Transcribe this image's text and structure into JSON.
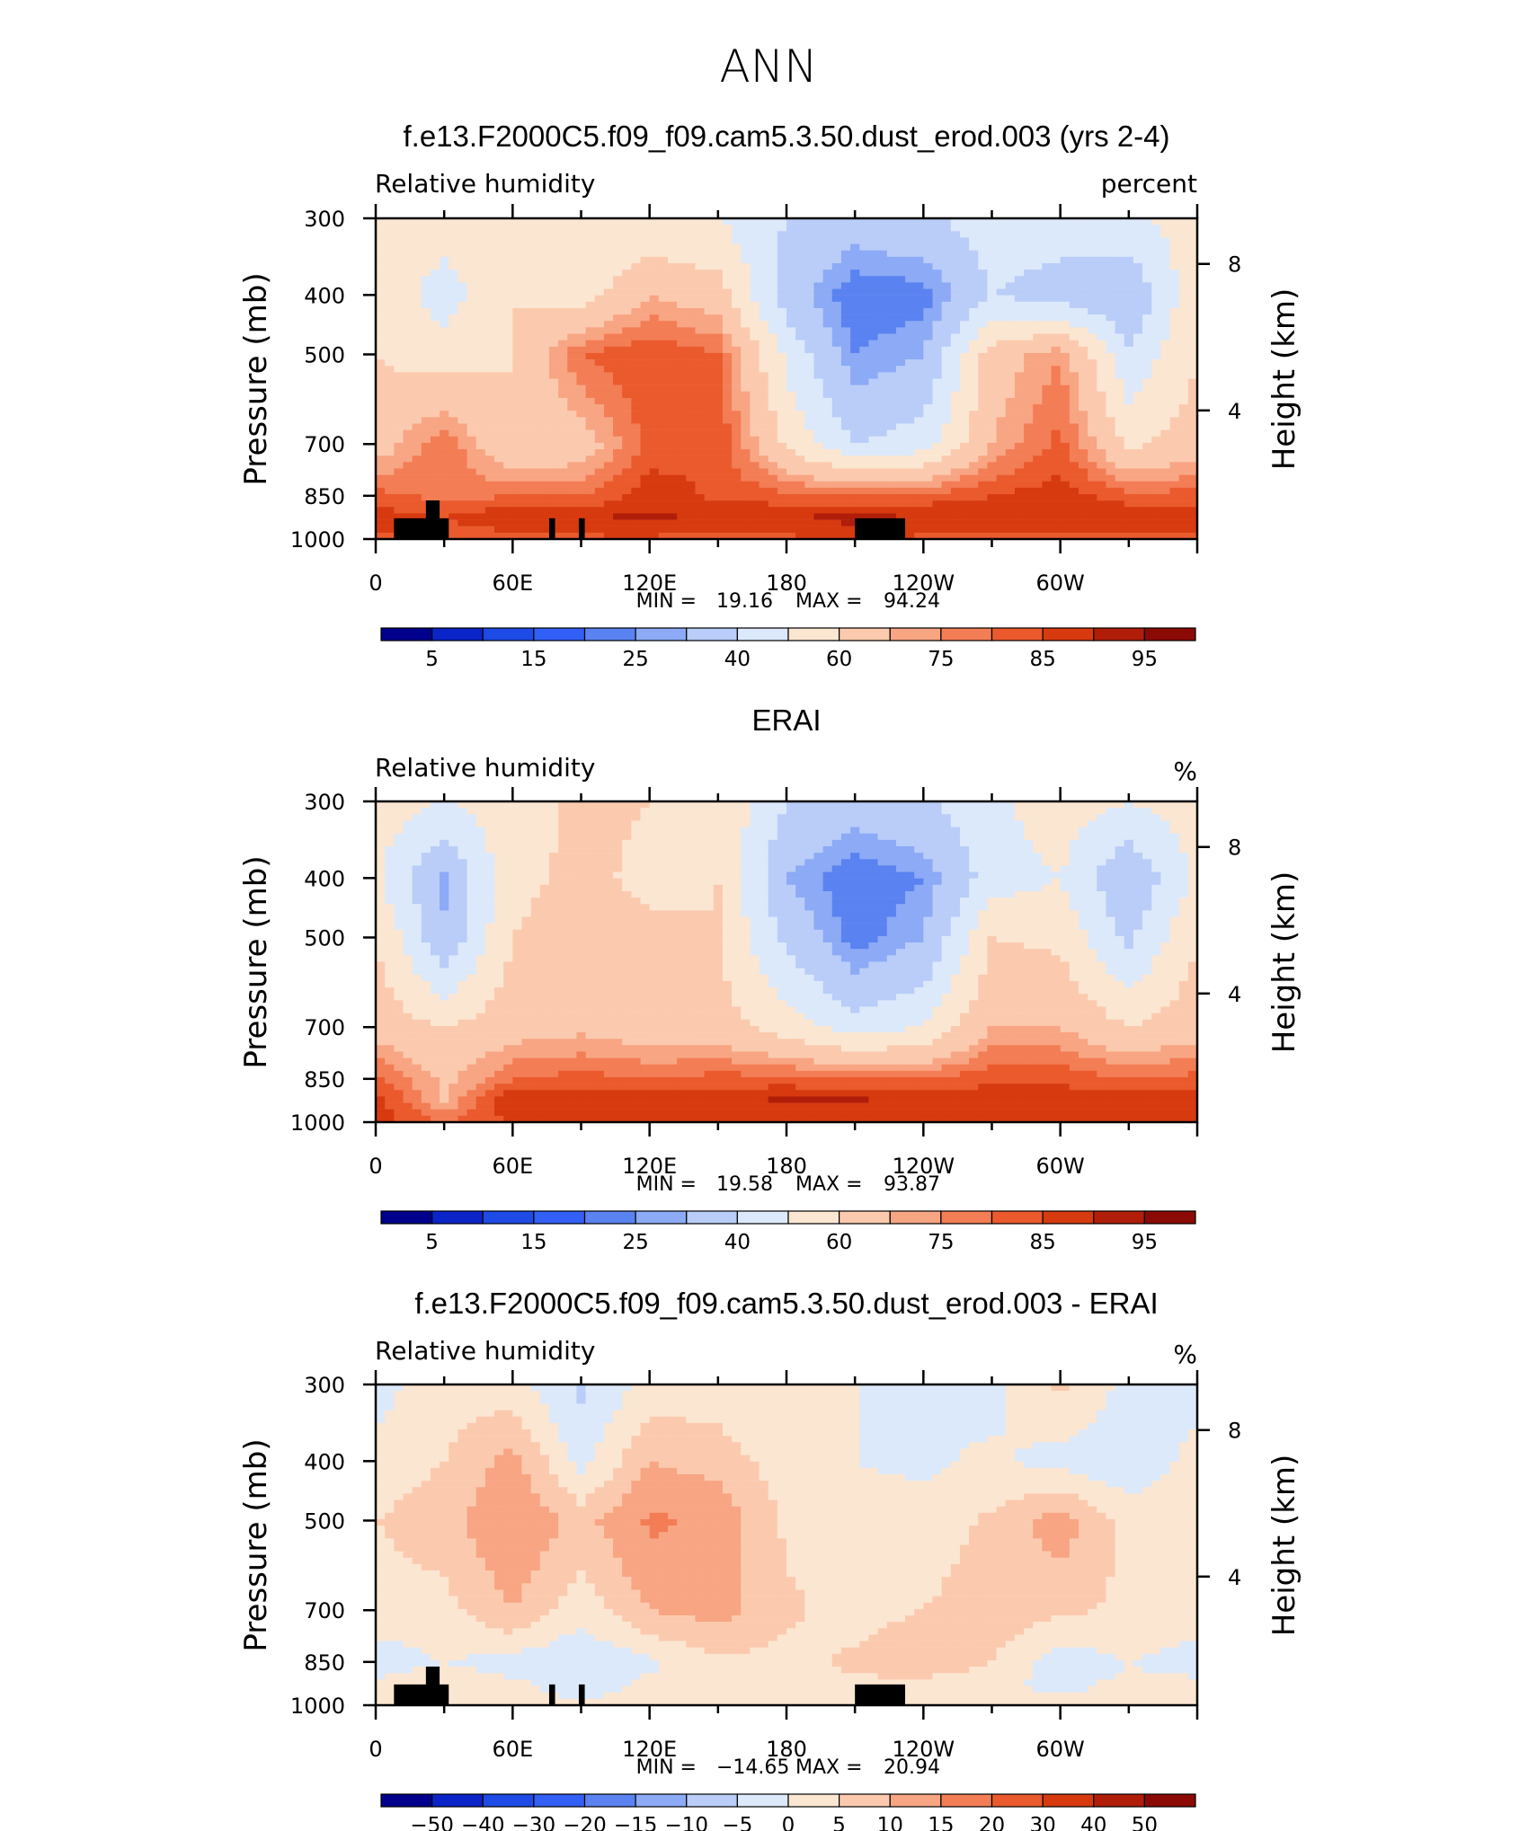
{
  "suptitle": "ANN",
  "x_ticks": [
    "0",
    "60E",
    "120E",
    "180",
    "120W",
    "60W"
  ],
  "y_ticks": [
    "300",
    "400",
    "500",
    "700",
    "850",
    "1000"
  ],
  "y_right_ticks": [
    "8",
    "4"
  ],
  "ylabel_left": "Pressure (mb)",
  "ylabel_right": "Height (km)",
  "min_label": "MIN =",
  "max_label": "MAX =",
  "panels": [
    {
      "title": "f.e13.F2000C5.f09_f09.cam5.3.50.dust_erod.003 (yrs 2-4)",
      "left_label": "Relative humidity",
      "right_label": "percent",
      "min": "19.16",
      "max": "94.24",
      "colorbar_labels": [
        "5",
        "15",
        "25",
        "40",
        "60",
        "75",
        "85",
        "95"
      ]
    },
    {
      "title": "ERAI",
      "left_label": "Relative humidity",
      "right_label": "%",
      "min": "19.58",
      "max": "93.87",
      "colorbar_labels": [
        "5",
        "15",
        "25",
        "40",
        "60",
        "75",
        "85",
        "95"
      ]
    },
    {
      "title": "f.e13.F2000C5.f09_f09.cam5.3.50.dust_erod.003 - ERAI",
      "left_label": "Relative humidity",
      "right_label": "%",
      "min": "−14.65",
      "max": "20.94",
      "colorbar_labels": [
        "−50",
        "−40",
        "−30",
        "−20",
        "−15",
        "−10",
        "−5",
        "0",
        "5",
        "10",
        "15",
        "20",
        "30",
        "40",
        "50"
      ]
    }
  ],
  "palette": [
    "#00008c",
    "#0a24c8",
    "#1e4be6",
    "#325ff5",
    "#5a82f0",
    "#8caaf5",
    "#b9cdf8",
    "#dce9fa",
    "#fbe6d2",
    "#fbcaae",
    "#f8a583",
    "#f37d55",
    "#ea5a2d",
    "#d73a0f",
    "#b01e0a",
    "#8c0a05"
  ],
  "chart_data": [
    {
      "type": "heatmap",
      "title": "f.e13.F2000C5.f09_f09.cam5.3.50.dust_erod.003 (yrs 2-4)",
      "subtitle": "Relative humidity",
      "units": "percent",
      "xlabel": "",
      "ylabel": "Pressure (mb)",
      "xlim": [
        0,
        360
      ],
      "ylim": [
        1000,
        300
      ],
      "y_scale": "log",
      "levels": [
        5,
        10,
        15,
        20,
        25,
        30,
        40,
        50,
        60,
        70,
        75,
        80,
        85,
        90,
        95
      ],
      "min": 19.16,
      "max": 94.24,
      "longitude": [
        0,
        30,
        60,
        90,
        120,
        150,
        180,
        210,
        240,
        270,
        300,
        330,
        360
      ],
      "pressure": [
        300,
        400,
        500,
        700,
        850,
        925,
        1000
      ],
      "values": [
        [
          55,
          55,
          55,
          50,
          52,
          50,
          40,
          35,
          38,
          45,
          45,
          48,
          55
        ],
        [
          58,
          45,
          60,
          55,
          70,
          65,
          35,
          20,
          22,
          40,
          35,
          30,
          58
        ],
        [
          60,
          55,
          60,
          80,
          85,
          80,
          48,
          25,
          30,
          65,
          75,
          42,
          60
        ],
        [
          65,
          80,
          60,
          65,
          82,
          85,
          58,
          40,
          45,
          70,
          82,
          58,
          65
        ],
        [
          82,
          78,
          80,
          80,
          88,
          84,
          82,
          80,
          82,
          85,
          88,
          82,
          82
        ],
        [
          88,
          85,
          90,
          90,
          91,
          89,
          90,
          92,
          90,
          88,
          86,
          90,
          88
        ],
        [
          84,
          82,
          82,
          84,
          84,
          83,
          84,
          84,
          84,
          84,
          84,
          84,
          84
        ]
      ]
    },
    {
      "type": "heatmap",
      "title": "ERAI",
      "subtitle": "Relative humidity",
      "units": "%",
      "xlabel": "",
      "ylabel": "Pressure (mb)",
      "xlim": [
        0,
        360
      ],
      "ylim": [
        1000,
        300
      ],
      "y_scale": "log",
      "levels": [
        5,
        10,
        15,
        20,
        25,
        30,
        40,
        50,
        60,
        70,
        75,
        80,
        85,
        90,
        95
      ],
      "min": 19.58,
      "max": 93.87,
      "longitude": [
        0,
        30,
        60,
        90,
        120,
        150,
        180,
        210,
        240,
        270,
        300,
        330,
        360
      ],
      "pressure": [
        300,
        400,
        500,
        700,
        850,
        925,
        1000
      ],
      "values": [
        [
          55,
          50,
          55,
          62,
          60,
          58,
          40,
          35,
          38,
          48,
          55,
          50,
          55
        ],
        [
          52,
          28,
          58,
          62,
          58,
          60,
          30,
          20,
          25,
          45,
          50,
          30,
          52
        ],
        [
          60,
          32,
          60,
          64,
          62,
          60,
          38,
          22,
          30,
          60,
          58,
          38,
          60
        ],
        [
          66,
          60,
          66,
          68,
          65,
          65,
          55,
          45,
          50,
          70,
          70,
          60,
          66
        ],
        [
          82,
          68,
          80,
          82,
          80,
          82,
          82,
          80,
          80,
          84,
          84,
          80,
          82
        ],
        [
          88,
          70,
          90,
          90,
          89,
          90,
          91,
          91,
          90,
          88,
          88,
          88,
          88
        ],
        [
          88,
          80,
          86,
          86,
          86,
          86,
          86,
          86,
          86,
          86,
          86,
          86,
          88
        ]
      ]
    },
    {
      "type": "heatmap",
      "title": "f.e13.F2000C5.f09_f09.cam5.3.50.dust_erod.003 - ERAI",
      "subtitle": "Relative humidity",
      "units": "%",
      "xlabel": "",
      "ylabel": "Pressure (mb)",
      "xlim": [
        0,
        360
      ],
      "ylim": [
        1000,
        300
      ],
      "y_scale": "log",
      "levels": [
        -50,
        -40,
        -30,
        -20,
        -15,
        -10,
        -5,
        0,
        5,
        10,
        15,
        20,
        30,
        40,
        50
      ],
      "min": -14.65,
      "max": 20.94,
      "longitude": [
        0,
        30,
        60,
        90,
        120,
        150,
        180,
        210,
        240,
        270,
        300,
        330,
        360
      ],
      "pressure": [
        300,
        400,
        500,
        700,
        850,
        925,
        1000
      ],
      "values": [
        [
          -2,
          3,
          2,
          -6,
          2,
          2,
          0,
          0,
          0,
          -2,
          6,
          -2,
          -2
        ],
        [
          2,
          5,
          12,
          -2,
          10,
          8,
          2,
          0,
          -1,
          1,
          -2,
          -4,
          2
        ],
        [
          5,
          8,
          15,
          8,
          16,
          14,
          4,
          2,
          2,
          6,
          13,
          3,
          5
        ],
        [
          2,
          3,
          10,
          2,
          10,
          12,
          6,
          3,
          5,
          8,
          6,
          4,
          2
        ],
        [
          -2,
          0,
          -2,
          -5,
          -1,
          4,
          3,
          6,
          10,
          5,
          -3,
          0,
          -2
        ],
        [
          1,
          2,
          1,
          -2,
          1,
          0,
          3,
          4,
          3,
          1,
          -1,
          1,
          1
        ],
        [
          1,
          1,
          1,
          1,
          1,
          1,
          1,
          1,
          1,
          1,
          1,
          1,
          1
        ]
      ]
    }
  ]
}
